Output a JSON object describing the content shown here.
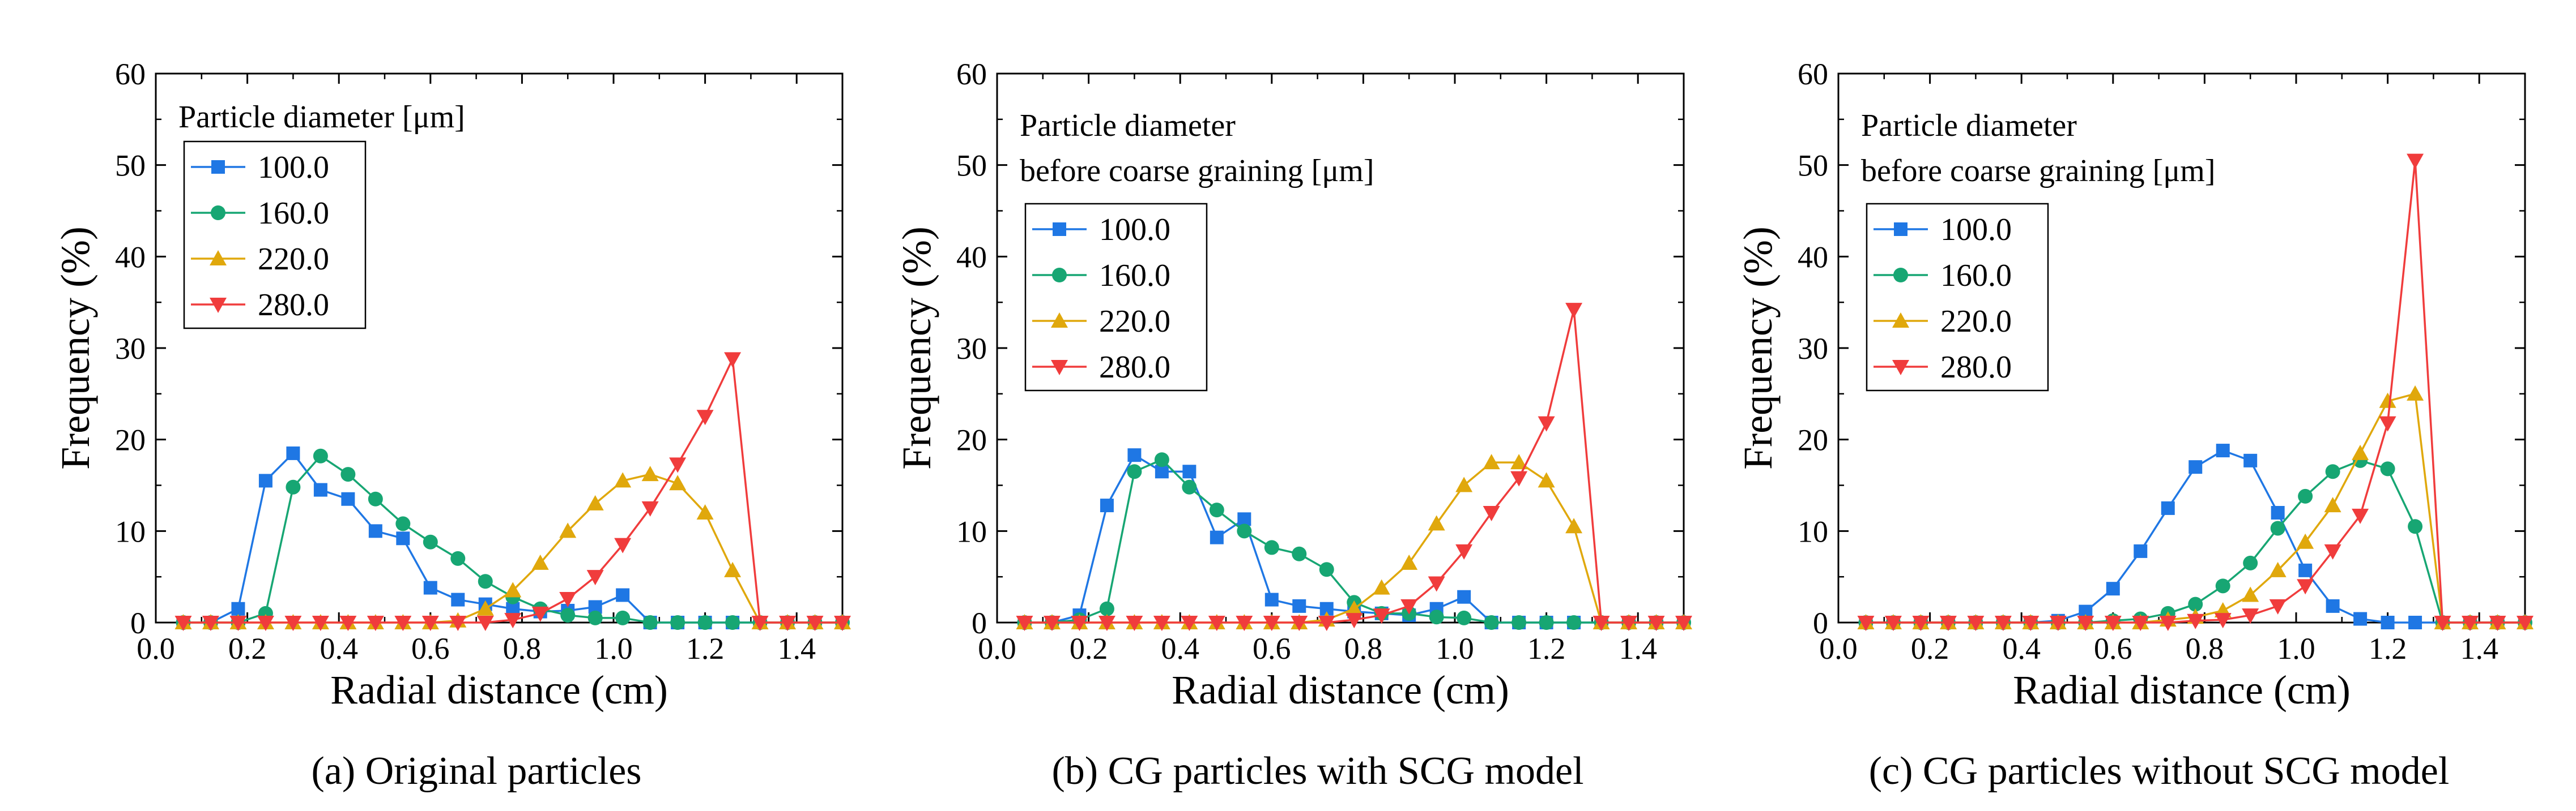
{
  "chart_data": [
    {
      "type": "line",
      "caption": "(a) Original particles",
      "xlabel": "Radial distance (cm)",
      "ylabel": "Frequency (%)",
      "xlim": [
        0.0,
        1.5
      ],
      "ylim": [
        0,
        60
      ],
      "xticks": [
        "0.0",
        "0.2",
        "0.4",
        "0.6",
        "0.8",
        "1.0",
        "1.2",
        "1.4"
      ],
      "yticks": [
        "0",
        "10",
        "20",
        "30",
        "40",
        "50",
        "60"
      ],
      "legend_title": [
        "Particle diameter [μm]"
      ],
      "legend_placement": "top-left",
      "x": [
        0.06,
        0.12,
        0.18,
        0.24,
        0.3,
        0.36,
        0.42,
        0.48,
        0.54,
        0.6,
        0.66,
        0.72,
        0.78,
        0.84,
        0.9,
        0.96,
        1.02,
        1.08,
        1.14,
        1.2,
        1.26,
        1.32,
        1.38,
        1.44,
        1.5
      ],
      "series": [
        {
          "name": "100.0",
          "color": "#1f77e4",
          "marker": "square",
          "values": [
            0,
            0,
            1.5,
            15.5,
            18.5,
            14.5,
            13.5,
            10,
            9.2,
            3.8,
            2.5,
            2,
            1.5,
            1.2,
            1.3,
            1.7,
            3,
            0,
            0,
            0,
            0,
            0,
            0,
            0,
            0
          ]
        },
        {
          "name": "160.0",
          "color": "#17a673",
          "marker": "circle",
          "values": [
            0,
            0,
            0,
            1,
            14.8,
            18.2,
            16.2,
            13.5,
            10.8,
            8.8,
            7,
            4.5,
            2.8,
            1.5,
            0.8,
            0.5,
            0.5,
            0,
            0,
            0,
            0,
            0,
            0,
            0,
            0
          ]
        },
        {
          "name": "220.0",
          "color": "#e0a80c",
          "marker": "triangle-up",
          "values": [
            0,
            0,
            0,
            0,
            0,
            0,
            0,
            0,
            0,
            0,
            0.2,
            1.5,
            3.5,
            6.5,
            10,
            13,
            15.5,
            16.2,
            15.2,
            12,
            5.7,
            0,
            0,
            0,
            0
          ]
        },
        {
          "name": "280.0",
          "color": "#f03c3c",
          "marker": "triangle-down",
          "values": [
            0,
            0,
            0,
            0,
            0,
            0,
            0,
            0,
            0,
            0,
            0,
            0,
            0.3,
            1,
            2.6,
            5,
            8.5,
            12.5,
            17.3,
            22.5,
            28.8,
            0,
            0,
            0,
            0
          ]
        }
      ]
    },
    {
      "type": "line",
      "caption": "(b) CG particles with SCG model",
      "xlabel": "Radial distance (cm)",
      "ylabel": "Frequency (%)",
      "xlim": [
        0.0,
        1.5
      ],
      "ylim": [
        0,
        60
      ],
      "xticks": [
        "0.0",
        "0.2",
        "0.4",
        "0.6",
        "0.8",
        "1.0",
        "1.2",
        "1.4"
      ],
      "yticks": [
        "0",
        "10",
        "20",
        "30",
        "40",
        "50",
        "60"
      ],
      "legend_title": [
        "Particle diameter",
        "before coarse graining [μm]"
      ],
      "legend_placement": "top-left",
      "x": [
        0.06,
        0.12,
        0.18,
        0.24,
        0.3,
        0.36,
        0.42,
        0.48,
        0.54,
        0.6,
        0.66,
        0.72,
        0.78,
        0.84,
        0.9,
        0.96,
        1.02,
        1.08,
        1.14,
        1.2,
        1.26,
        1.32,
        1.38,
        1.44,
        1.5
      ],
      "series": [
        {
          "name": "100.0",
          "color": "#1f77e4",
          "marker": "square",
          "values": [
            0,
            0,
            0.8,
            12.8,
            18.3,
            16.5,
            16.5,
            9.3,
            11.3,
            2.5,
            1.8,
            1.5,
            1.2,
            1,
            0.8,
            1.5,
            2.8,
            0,
            0,
            0,
            0,
            0,
            0,
            0,
            0
          ]
        },
        {
          "name": "160.0",
          "color": "#17a673",
          "marker": "circle",
          "values": [
            0,
            0,
            0.3,
            1.5,
            16.5,
            17.8,
            14.8,
            12.3,
            10,
            8.2,
            7.5,
            5.8,
            2.2,
            1,
            1,
            0.6,
            0.5,
            0,
            0,
            0,
            0,
            0,
            0,
            0,
            0
          ]
        },
        {
          "name": "220.0",
          "color": "#e0a80c",
          "marker": "triangle-up",
          "values": [
            0,
            0,
            0,
            0,
            0,
            0,
            0,
            0,
            0,
            0,
            0,
            0.3,
            1.5,
            3.8,
            6.5,
            10.8,
            15,
            17.5,
            17.5,
            15.5,
            10.5,
            0,
            0,
            0,
            0
          ]
        },
        {
          "name": "280.0",
          "color": "#f03c3c",
          "marker": "triangle-down",
          "values": [
            0,
            0,
            0,
            0,
            0,
            0,
            0,
            0,
            0,
            0,
            0,
            0,
            0.3,
            0.8,
            1.8,
            4.3,
            7.8,
            12,
            15.8,
            21.8,
            34.2,
            0,
            0,
            0,
            0
          ]
        }
      ]
    },
    {
      "type": "line",
      "caption": "(c) CG particles without SCG model",
      "xlabel": "Radial distance (cm)",
      "ylabel": "Frequency (%)",
      "xlim": [
        0.0,
        1.5
      ],
      "ylim": [
        0,
        60
      ],
      "xticks": [
        "0.0",
        "0.2",
        "0.4",
        "0.6",
        "0.8",
        "1.0",
        "1.2",
        "1.4"
      ],
      "yticks": [
        "0",
        "10",
        "20",
        "30",
        "40",
        "50",
        "60"
      ],
      "legend_title": [
        "Particle diameter",
        "before coarse graining [μm]"
      ],
      "legend_placement": "top-left",
      "x": [
        0.06,
        0.12,
        0.18,
        0.24,
        0.3,
        0.36,
        0.42,
        0.48,
        0.54,
        0.6,
        0.66,
        0.72,
        0.78,
        0.84,
        0.9,
        0.96,
        1.02,
        1.08,
        1.14,
        1.2,
        1.26,
        1.32,
        1.38,
        1.44,
        1.5
      ],
      "series": [
        {
          "name": "100.0",
          "color": "#1f77e4",
          "marker": "square",
          "values": [
            0,
            0,
            0,
            0,
            0,
            0,
            0,
            0.2,
            1.2,
            3.7,
            7.8,
            12.5,
            17,
            18.8,
            17.7,
            12,
            5.7,
            1.8,
            0.4,
            0,
            0,
            0,
            0,
            0,
            0
          ]
        },
        {
          "name": "160.0",
          "color": "#17a673",
          "marker": "circle",
          "values": [
            0,
            0,
            0,
            0,
            0,
            0,
            0,
            0,
            0,
            0.2,
            0.4,
            1,
            2,
            4,
            6.5,
            10.3,
            13.8,
            16.5,
            17.7,
            16.8,
            10.5,
            0,
            0,
            0,
            0
          ]
        },
        {
          "name": "220.0",
          "color": "#e0a80c",
          "marker": "triangle-up",
          "values": [
            0,
            0,
            0,
            0,
            0,
            0,
            0,
            0,
            0,
            0,
            0,
            0.3,
            0.6,
            1.3,
            3,
            5.7,
            8.8,
            12.8,
            18.5,
            24.2,
            25,
            0,
            0,
            0,
            0
          ]
        },
        {
          "name": "280.0",
          "color": "#f03c3c",
          "marker": "triangle-down",
          "values": [
            0,
            0,
            0,
            0,
            0,
            0,
            0,
            0,
            0,
            0,
            0,
            0,
            0.2,
            0.3,
            0.8,
            1.8,
            4,
            7.8,
            11.7,
            21.8,
            50.5,
            0,
            0,
            0,
            0
          ]
        }
      ]
    }
  ]
}
